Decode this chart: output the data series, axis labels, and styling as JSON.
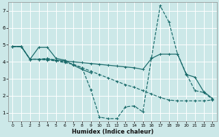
{
  "xlabel": "Humidex (Indice chaleur)",
  "xlim": [
    -0.5,
    23.5
  ],
  "ylim": [
    0.5,
    7.5
  ],
  "xticks": [
    0,
    1,
    2,
    3,
    4,
    5,
    6,
    7,
    8,
    9,
    10,
    11,
    12,
    13,
    14,
    15,
    16,
    17,
    18,
    19,
    20,
    21,
    22,
    23
  ],
  "yticks": [
    1,
    2,
    3,
    4,
    5,
    6,
    7
  ],
  "bg_color": "#cce8e8",
  "line_color": "#1a6b6b",
  "grid_color": "#ffffff",
  "series": [
    {
      "x": [
        0,
        1,
        2,
        3,
        4,
        5,
        6,
        7,
        8,
        9
      ],
      "y": [
        4.9,
        4.9,
        4.15,
        4.85,
        4.85,
        4.2,
        4.1,
        3.8,
        3.55,
        3.35
      ],
      "style": "-",
      "marker": "+"
    },
    {
      "x": [
        0,
        1,
        2,
        3,
        4,
        5,
        6,
        7,
        8,
        9,
        10,
        11,
        12,
        13,
        14,
        15,
        16,
        17,
        18,
        19,
        20,
        21,
        22,
        23
      ],
      "y": [
        4.9,
        4.9,
        4.15,
        4.15,
        4.15,
        4.1,
        4.05,
        4.0,
        3.95,
        3.9,
        3.85,
        3.8,
        3.75,
        3.7,
        3.65,
        3.55,
        4.2,
        4.45,
        4.45,
        4.45,
        3.25,
        3.1,
        2.25,
        1.85
      ],
      "style": "-",
      "marker": "+"
    },
    {
      "x": [
        0,
        1,
        2,
        3,
        4,
        5,
        6,
        7,
        8,
        9,
        10,
        11,
        12,
        13,
        14,
        15,
        16,
        17,
        18,
        19,
        20,
        21,
        22,
        23
      ],
      "y": [
        4.9,
        4.9,
        4.15,
        4.15,
        4.2,
        4.1,
        4.0,
        3.85,
        3.65,
        3.45,
        3.25,
        3.05,
        2.85,
        2.65,
        2.5,
        2.3,
        2.1,
        1.9,
        1.75,
        1.7,
        1.7,
        1.7,
        1.7,
        1.75
      ],
      "style": "--",
      "marker": "+"
    },
    {
      "x": [
        0,
        1,
        2,
        3,
        4,
        5,
        6,
        7,
        8,
        9,
        10,
        11,
        12,
        13,
        14,
        15,
        16,
        17,
        18,
        19,
        20,
        21,
        22,
        23
      ],
      "y": [
        4.9,
        4.9,
        4.15,
        4.15,
        4.1,
        4.05,
        3.95,
        3.85,
        3.65,
        2.35,
        0.75,
        0.65,
        0.65,
        1.35,
        1.4,
        1.05,
        4.25,
        7.3,
        6.35,
        4.45,
        3.3,
        2.3,
        2.2,
        1.8
      ],
      "style": "--",
      "marker": "+"
    }
  ]
}
